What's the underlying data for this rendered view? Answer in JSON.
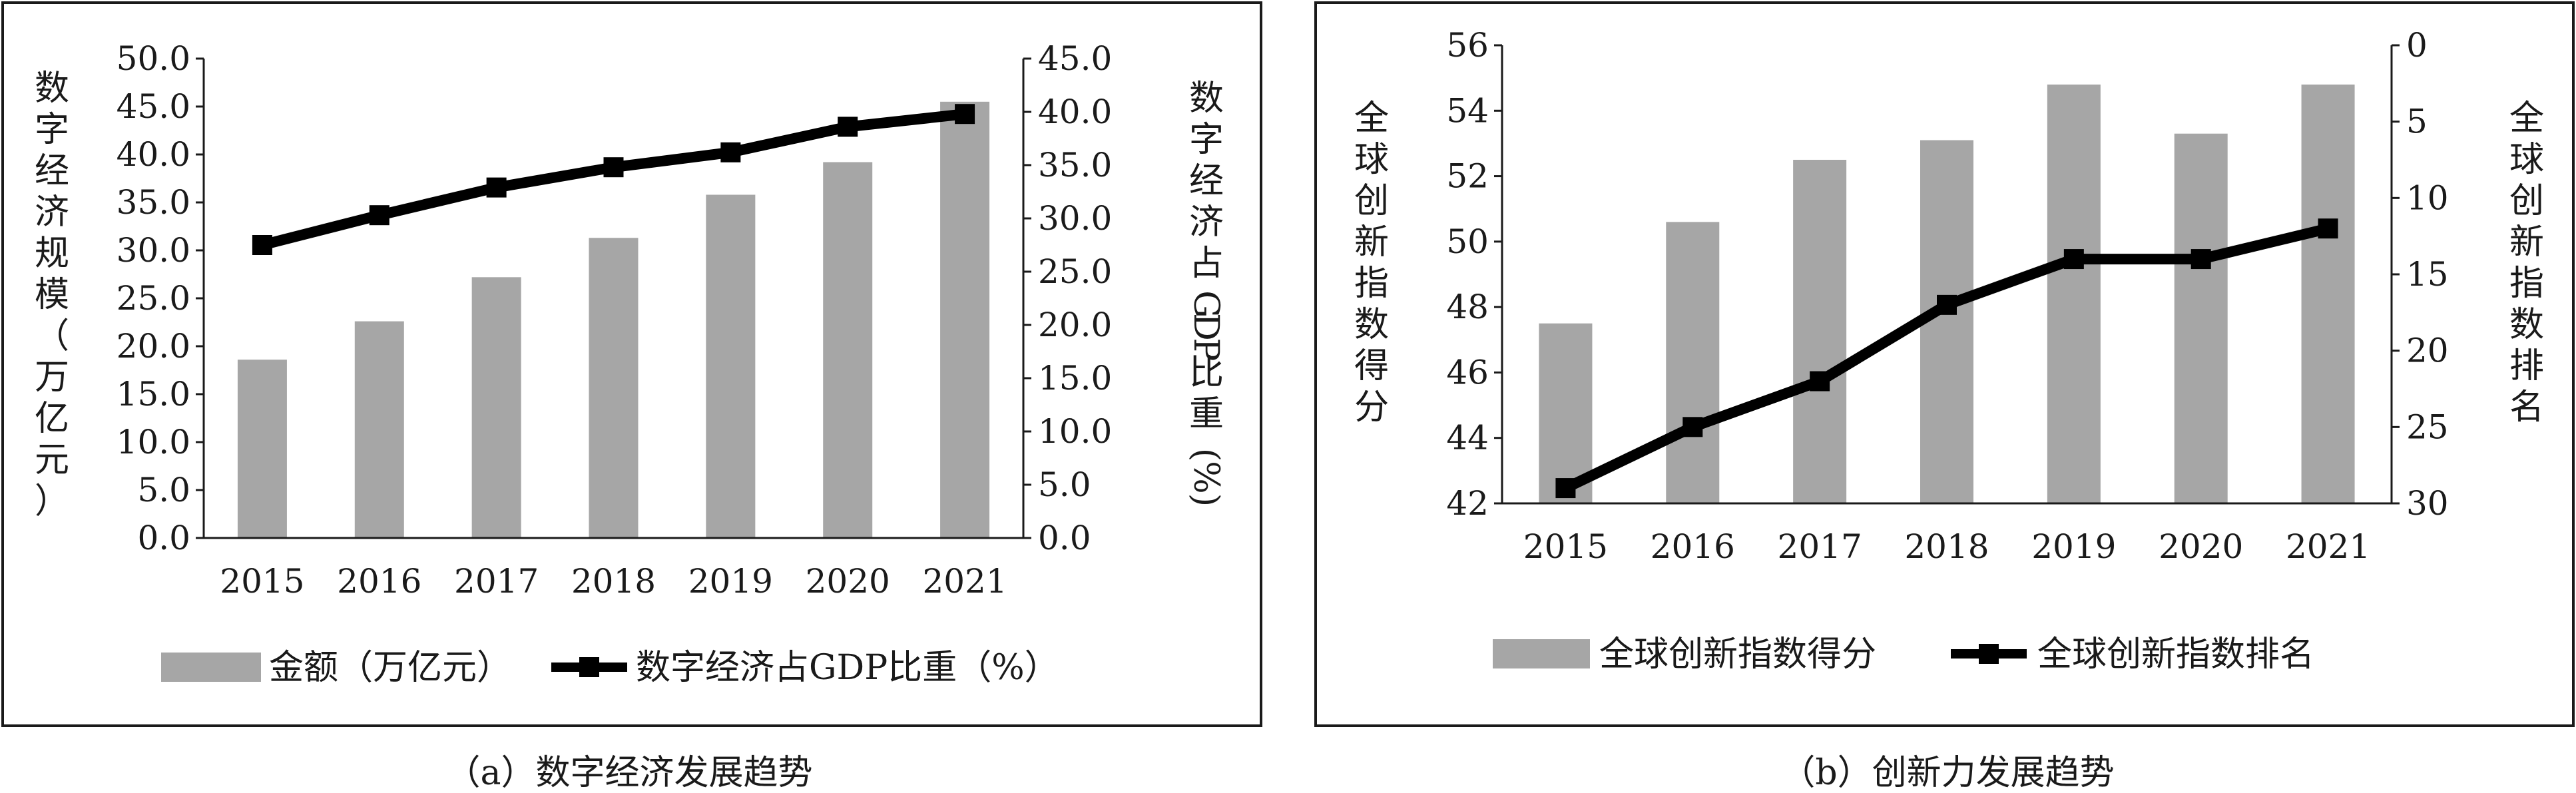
{
  "captions": {
    "left": "（a）数字经济发展趋势",
    "right": "（b）创新力发展趋势"
  },
  "colors": {
    "bar": "#a6a6a6",
    "line": "#000000",
    "frame": "#1a1a1a"
  },
  "chart_data": [
    {
      "type": "bar",
      "categories": [
        "2015",
        "2016",
        "2017",
        "2018",
        "2019",
        "2020",
        "2021"
      ],
      "series": [
        {
          "name": "金额（万亿元）",
          "type": "bar",
          "axis": "left",
          "values": [
            18.6,
            22.6,
            27.2,
            31.3,
            35.8,
            39.2,
            45.5
          ]
        },
        {
          "name": "数字经济占GDP比重（%）",
          "type": "line",
          "axis": "right",
          "values": [
            27.5,
            30.3,
            32.9,
            34.8,
            36.2,
            38.6,
            39.8
          ]
        }
      ],
      "ylabel": "数字经济规模（万亿元）",
      "y2label": "数字经济占GDP比重(%)",
      "ylim": [
        0,
        50
      ],
      "y2lim": [
        0,
        45
      ],
      "yticks": [
        "0.0",
        "5.0",
        "10.0",
        "15.0",
        "20.0",
        "25.0",
        "30.0",
        "35.0",
        "40.0",
        "45.0",
        "50.0"
      ],
      "y2ticks": [
        "0.0",
        "5.0",
        "10.0",
        "15.0",
        "20.0",
        "25.0",
        "30.0",
        "35.0",
        "40.0",
        "45.0"
      ],
      "legend": [
        "金额（万亿元）",
        "数字经济占GDP比重（%）"
      ],
      "legend_position": "bottom",
      "grid": false
    },
    {
      "type": "bar",
      "categories": [
        "2015",
        "2016",
        "2017",
        "2018",
        "2019",
        "2020",
        "2021"
      ],
      "series": [
        {
          "name": "全球创新指数得分",
          "type": "bar",
          "axis": "left",
          "values": [
            47.5,
            50.6,
            52.5,
            53.1,
            54.8,
            53.3,
            54.8
          ]
        },
        {
          "name": "全球创新指数排名",
          "type": "line",
          "axis": "right",
          "values": [
            29,
            25,
            22,
            17,
            14,
            14,
            12
          ]
        }
      ],
      "ylabel": "全球创新指数得分",
      "y2label": "全球创新指数排名",
      "ylim": [
        42,
        56
      ],
      "y2lim": [
        30,
        0
      ],
      "y2_inverted": true,
      "yticks": [
        "42",
        "44",
        "46",
        "48",
        "50",
        "52",
        "54",
        "56"
      ],
      "y2ticks": [
        "0",
        "5",
        "10",
        "15",
        "20",
        "25",
        "30"
      ],
      "legend": [
        "全球创新指数得分",
        "全球创新指数排名"
      ],
      "legend_position": "bottom",
      "grid": false
    }
  ]
}
